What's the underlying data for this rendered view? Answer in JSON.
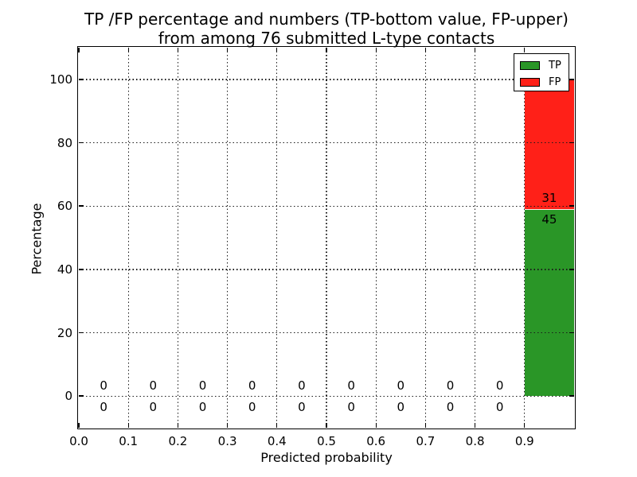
{
  "figure": {
    "title_line1": "TP /FP percentage and numbers (TP-bottom value, FP-upper)",
    "title_line2": "from among 76 submitted L-type contacts"
  },
  "chart_data": {
    "type": "bar",
    "stacked": true,
    "title": "TP /FP percentage and numbers (TP-bottom value, FP-upper)",
    "subtitle": "from among 76 submitted L-type contacts",
    "xlabel": "Predicted probability",
    "ylabel": "Percentage",
    "total_submitted": 76,
    "xlim": [
      0.0,
      1.0
    ],
    "ylim": [
      -10,
      110
    ],
    "xticks": [
      0.0,
      0.1,
      0.2,
      0.3,
      0.4,
      0.5,
      0.6,
      0.7,
      0.8,
      0.9
    ],
    "xtick_labels": [
      "0.0",
      "0.1",
      "0.2",
      "0.3",
      "0.4",
      "0.5",
      "0.6",
      "0.7",
      "0.8",
      "0.9"
    ],
    "yticks": [
      0,
      20,
      40,
      60,
      80,
      100
    ],
    "ytick_labels": [
      "0",
      "20",
      "40",
      "60",
      "80",
      "100"
    ],
    "grid": true,
    "grid_style": "dotted",
    "bin_edges": [
      0.0,
      0.1,
      0.2,
      0.3,
      0.4,
      0.5,
      0.6,
      0.7,
      0.8,
      0.9,
      1.0
    ],
    "series": [
      {
        "name": "TP",
        "color": "#2a9627",
        "counts": [
          0,
          0,
          0,
          0,
          0,
          0,
          0,
          0,
          0,
          45
        ]
      },
      {
        "name": "FP",
        "color": "#ff2018",
        "counts": [
          0,
          0,
          0,
          0,
          0,
          0,
          0,
          0,
          0,
          31
        ]
      }
    ],
    "bar_percentages": {
      "TP": 59.2,
      "FP": 40.8
    },
    "legend": {
      "position": "upper right",
      "entries": [
        {
          "label": "TP",
          "color": "#2a9627"
        },
        {
          "label": "FP",
          "color": "#ff2018"
        }
      ]
    }
  }
}
